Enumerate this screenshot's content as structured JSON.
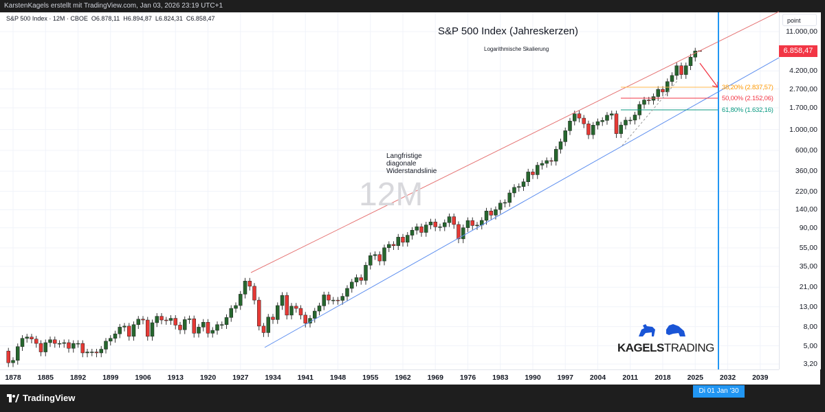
{
  "header": {
    "attribution": "KarstenKagels erstellt mit TradingView.com, Jan 03, 2026 23:19 UTC+1"
  },
  "legend": {
    "symbol": "S&P 500 Index · 12M · CBOE",
    "open": "O6.878,11",
    "high": "H6.894,87",
    "low": "L6.824,31",
    "close": "C6.858,47"
  },
  "annotations": {
    "title": "S&P 500 Index (Jahreskerzen)",
    "subtitle": "Logarithmische Skalierung",
    "resistance_note": [
      "Langfristige",
      "diagonale",
      "Widerstandslinie"
    ],
    "watermark": "12M",
    "fib": [
      {
        "label": "38,20% (2.837,57)",
        "color": "#ff9800",
        "value": 2837.57
      },
      {
        "label": "50,00% (2.152,06)",
        "color": "#f23645",
        "value": 2152.06
      },
      {
        "label": "61,80% (1.632,16)",
        "color": "#089981",
        "value": 1632.16
      }
    ]
  },
  "price_axis": {
    "unit_label": "point",
    "ticks": [
      "11.000,00",
      "4.200,00",
      "2.700,00",
      "1.700,00",
      "1.000,00",
      "600,00",
      "360,00",
      "220,00",
      "140,00",
      "90,00",
      "55,00",
      "35,00",
      "21,00",
      "13,00",
      "8,00",
      "5,00",
      "3,20"
    ],
    "last_price": "6.858,47"
  },
  "time_axis": {
    "ticks": [
      "1878",
      "1885",
      "1892",
      "1899",
      "1906",
      "1913",
      "1920",
      "1927",
      "1934",
      "1941",
      "1948",
      "1955",
      "1962",
      "1969",
      "1976",
      "1983",
      "1990",
      "1997",
      "2004",
      "2011",
      "2018",
      "2025",
      "2032",
      "2039"
    ],
    "crosshair_label": "Di 01 Jan '30"
  },
  "logo": {
    "text_bold": "KAGELS",
    "text_light": "TRADING"
  },
  "footer": {
    "brand": "TradingView"
  },
  "colors": {
    "up": "#26662e",
    "down": "#e53935",
    "resistance": "#e57373",
    "support": "#5b8def",
    "crosshair": "#2196f3"
  },
  "chart_data": {
    "type": "candlestick",
    "title": "S&P 500 Index (Jahreskerzen)",
    "scale": "log",
    "ylim": [
      3.0,
      15000
    ],
    "xlim": [
      1877,
      2045
    ],
    "interval": "12M",
    "start_year": 1877,
    "start_open": 4.4,
    "closes": [
      3.3,
      3.5,
      4.9,
      6.0,
      6.2,
      5.9,
      5.3,
      4.3,
      5.4,
      5.8,
      5.3,
      5.3,
      5.4,
      4.7,
      5.3,
      5.3,
      4.2,
      4.3,
      4.3,
      4.2,
      4.6,
      5.6,
      6.0,
      6.7,
      7.9,
      8.1,
      6.3,
      8.4,
      9.6,
      9.4,
      6.3,
      8.8,
      10.3,
      9.4,
      9.3,
      9.8,
      8.3,
      7.4,
      9.5,
      9.7,
      6.8,
      7.9,
      8.9,
      6.8,
      7.3,
      8.4,
      8.4,
      10.0,
      12.5,
      13.4,
      17.7,
      24.4,
      21.5,
      15.3,
      8.1,
      6.9,
      10.1,
      9.5,
      13.4,
      17.2,
      10.6,
      13.2,
      12.5,
      10.6,
      8.7,
      9.8,
      11.7,
      13.3,
      17.4,
      15.3,
      15.3,
      15.2,
      16.8,
      20.4,
      23.8,
      26.6,
      24.8,
      36.0,
      45.5,
      46.7,
      39.9,
      55.2,
      59.9,
      58.1,
      71.6,
      63.1,
      75.0,
      84.8,
      92.4,
      80.3,
      96.5,
      103.9,
      92.1,
      92.2,
      102.1,
      118.1,
      97.6,
      68.6,
      90.2,
      107.5,
      95.1,
      96.1,
      107.9,
      135.8,
      122.6,
      140.6,
      164.9,
      167.2,
      211.3,
      242.2,
      247.1,
      277.7,
      353.4,
      330.2,
      417.1,
      435.7,
      466.5,
      459.3,
      615.9,
      740.7,
      970.4,
      1229.2,
      1469.3,
      1320.3,
      1148.1,
      879.8,
      1111.9,
      1211.9,
      1248.3,
      1418.3,
      1468.4,
      903.3,
      1115.1,
      1257.6,
      1257.6,
      1426.2,
      1848.4,
      2058.9,
      2043.9,
      2238.8,
      2673.6,
      2506.9,
      3230.8,
      3756.1,
      4766.2,
      3839.5,
      4769.8,
      5881.6,
      6845.5
    ],
    "last_candle": {
      "year": 2026,
      "open": 6878.11,
      "high": 6894.87,
      "low": 6824.31,
      "close": 6858.47
    }
  }
}
